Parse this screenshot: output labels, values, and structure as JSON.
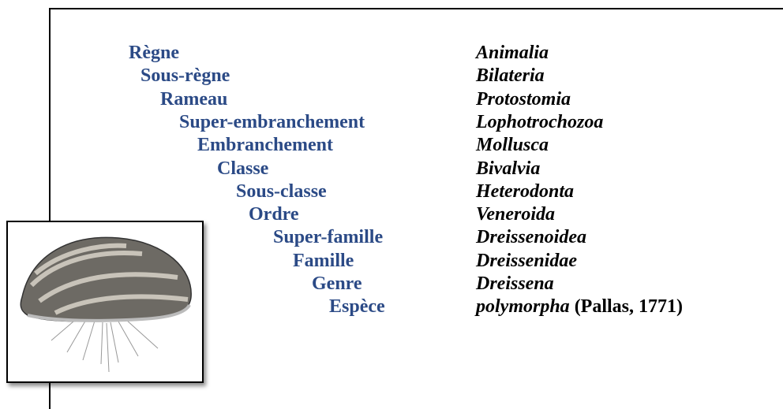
{
  "taxonomy": [
    {
      "rank": "Règne",
      "name": "Animalia"
    },
    {
      "rank": "Sous-règne",
      "name": "Bilateria"
    },
    {
      "rank": "Rameau",
      "name": "Protostomia"
    },
    {
      "rank": "Super-embranchement",
      "name": "Lophotrochozoa"
    },
    {
      "rank": "Embranchement",
      "name": "Mollusca"
    },
    {
      "rank": "Classe",
      "name": "Bivalvia"
    },
    {
      "rank": "Sous-classe",
      "name": "Heterodonta"
    },
    {
      "rank": "Ordre",
      "name": "Veneroida"
    },
    {
      "rank": "Super-famille",
      "name": "Dreissenoidea"
    },
    {
      "rank": "Famille",
      "name": "Dreissenidae"
    },
    {
      "rank": "Genre",
      "name": "Dreissena"
    },
    {
      "rank": "Espèce",
      "name": "polymorpha",
      "authority": "(Pallas, 1771)"
    }
  ]
}
